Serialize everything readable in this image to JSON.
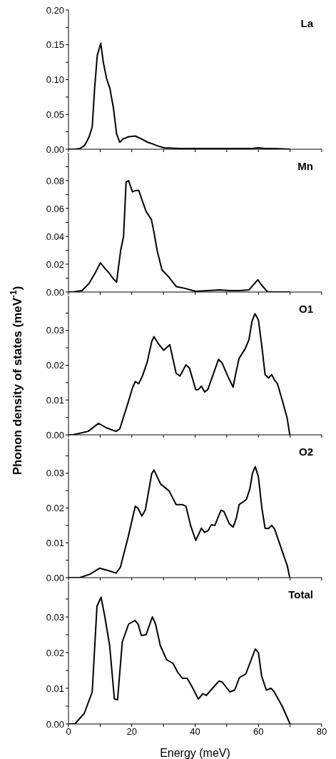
{
  "chart_data": [
    {
      "type": "line",
      "annotations": [
        "La"
      ],
      "tick_labels": "y",
      "marker": "none",
      "line_style": "solid",
      "xlim": [
        0,
        80
      ],
      "xticks": [
        {
          "value": 0,
          "label": null
        },
        {
          "value": 10,
          "label": null
        },
        {
          "value": 20,
          "label": null
        },
        {
          "value": 30,
          "label": null
        },
        {
          "value": 40,
          "label": null
        },
        {
          "value": 50,
          "label": null
        },
        {
          "value": 60,
          "label": null
        },
        {
          "value": 70,
          "label": null
        },
        {
          "value": 80,
          "label": null
        }
      ],
      "ylim": [
        0,
        0.2
      ],
      "yticks": [
        {
          "value": 0,
          "label": "0.00"
        },
        {
          "value": 0.025,
          "label": null
        },
        {
          "value": 0.05,
          "label": "0.05"
        },
        {
          "value": 0.075,
          "label": null
        },
        {
          "value": 0.1,
          "label": "0.10"
        },
        {
          "value": 0.125,
          "label": null
        },
        {
          "value": 0.15,
          "label": "0.15"
        },
        {
          "value": 0.175,
          "label": null
        },
        {
          "value": 0.2,
          "label": "0.20"
        }
      ],
      "series": [
        {
          "color": "#000000",
          "x": [
            0,
            2,
            3.6,
            5,
            5.9,
            6.6,
            7.5,
            8.3,
            9.1,
            10.2,
            11,
            12,
            13.1,
            14.2,
            15.2,
            16.2,
            17.3,
            19,
            21.1,
            23,
            25,
            26.4,
            28,
            30.2,
            35,
            50,
            58,
            60,
            62,
            65,
            70
          ],
          "values": [
            0,
            0,
            0.001,
            0.005,
            0.012,
            0.019,
            0.032,
            0.09,
            0.135,
            0.152,
            0.125,
            0.102,
            0.087,
            0.059,
            0.022,
            0.01,
            0.015,
            0.018,
            0.019,
            0.015,
            0.01,
            0.008,
            0.005,
            0.002,
            0.001,
            0.001,
            0.001,
            0.002,
            0.001,
            0.001,
            0
          ]
        }
      ]
    },
    {
      "type": "line",
      "annotations": [
        "Mn"
      ],
      "tick_labels": "y",
      "marker": "none",
      "line_style": "solid",
      "xlim": [
        0,
        80
      ],
      "xticks": [
        {
          "value": 0,
          "label": null
        },
        {
          "value": 10,
          "label": null
        },
        {
          "value": 20,
          "label": null
        },
        {
          "value": 30,
          "label": null
        },
        {
          "value": 40,
          "label": null
        },
        {
          "value": 50,
          "label": null
        },
        {
          "value": 60,
          "label": null
        },
        {
          "value": 70,
          "label": null
        },
        {
          "value": 80,
          "label": null
        }
      ],
      "ylim": [
        0,
        0.1
      ],
      "yticks": [
        {
          "value": 0,
          "label": "0.00"
        },
        {
          "value": 0.01,
          "label": null
        },
        {
          "value": 0.02,
          "label": "0.02"
        },
        {
          "value": 0.03,
          "label": null
        },
        {
          "value": 0.04,
          "label": "0.04"
        },
        {
          "value": 0.05,
          "label": null
        },
        {
          "value": 0.06,
          "label": "0.06"
        },
        {
          "value": 0.07,
          "label": null
        },
        {
          "value": 0.08,
          "label": "0.08"
        },
        {
          "value": 0.09,
          "label": null
        }
      ],
      "series": [
        {
          "color": "#000000",
          "x": [
            0,
            1.3,
            4.3,
            6.6,
            8.5,
            10.1,
            11.5,
            12.7,
            14,
            15.2,
            15.8,
            16.5,
            17.4,
            18.2,
            19,
            20.2,
            21.3,
            22.2,
            23.4,
            24.5,
            26.2,
            27,
            28,
            29.5,
            31.8,
            34,
            37,
            40.2,
            44,
            47.8,
            51,
            54,
            57,
            59.8,
            61,
            62.9,
            70
          ],
          "values": [
            0,
            0,
            0.001,
            0.0065,
            0.014,
            0.021,
            0.017,
            0.014,
            0.01,
            0.007,
            0.018,
            0.03,
            0.04,
            0.079,
            0.08,
            0.072,
            0.073,
            0.073,
            0.065,
            0.058,
            0.052,
            0.043,
            0.03,
            0.016,
            0.0105,
            0.004,
            0.0025,
            0.0005,
            0.001,
            0.0015,
            0.001,
            0.001,
            0.0015,
            0.0088,
            0.005,
            0,
            0
          ]
        }
      ]
    },
    {
      "type": "line",
      "annotations": [
        "O1"
      ],
      "ylabel": "Phonon density of states (meV$^{-1}$)",
      "tick_labels": "y",
      "marker": "none",
      "line_style": "solid",
      "xlim": [
        0,
        80
      ],
      "xticks": [
        {
          "value": 0,
          "label": null
        },
        {
          "value": 10,
          "label": null
        },
        {
          "value": 20,
          "label": null
        },
        {
          "value": 30,
          "label": null
        },
        {
          "value": 40,
          "label": null
        },
        {
          "value": 50,
          "label": null
        },
        {
          "value": 60,
          "label": null
        },
        {
          "value": 70,
          "label": null
        },
        {
          "value": 80,
          "label": null
        }
      ],
      "ylim": [
        0,
        0.04
      ],
      "yticks": [
        {
          "value": 0,
          "label": "0.00"
        },
        {
          "value": 0.005,
          "label": null
        },
        {
          "value": 0.01,
          "label": "0.01"
        },
        {
          "value": 0.015,
          "label": null
        },
        {
          "value": 0.02,
          "label": "0.02"
        },
        {
          "value": 0.025,
          "label": null
        },
        {
          "value": 0.03,
          "label": "0.03"
        },
        {
          "value": 0.035,
          "label": null
        }
      ],
      "series": [
        {
          "color": "#000000",
          "x": [
            0,
            1.3,
            6.2,
            9.5,
            12,
            15,
            16.2,
            18.4,
            20.3,
            21.1,
            22.2,
            23.4,
            24.9,
            26.3,
            27,
            28.3,
            30.1,
            32,
            34,
            35.2,
            37.1,
            38.2,
            40.2,
            41,
            42,
            43,
            44,
            47.4,
            48.5,
            50.4,
            52,
            52.7,
            53.9,
            55.8,
            57,
            58,
            58.9,
            60,
            61.1,
            62.1,
            63.2,
            64.2,
            65.1,
            66,
            67.6,
            69.1,
            69.9
          ],
          "values": [
            0,
            0,
            0.001,
            0.0033,
            0.002,
            0.001,
            0.0017,
            0.008,
            0.0137,
            0.0153,
            0.0147,
            0.017,
            0.021,
            0.0268,
            0.0282,
            0.0263,
            0.0243,
            0.0259,
            0.0177,
            0.0169,
            0.0201,
            0.0192,
            0.013,
            0.013,
            0.014,
            0.0123,
            0.013,
            0.0217,
            0.0207,
            0.0167,
            0.0137,
            0.017,
            0.022,
            0.0247,
            0.0273,
            0.0327,
            0.0348,
            0.033,
            0.0253,
            0.0173,
            0.0163,
            0.0173,
            0.0157,
            0.0147,
            0.0097,
            0.0047,
            0
          ]
        }
      ]
    },
    {
      "type": "line",
      "annotations": [
        "O2"
      ],
      "tick_labels": "y",
      "marker": "none",
      "line_style": "solid",
      "xlim": [
        0,
        80
      ],
      "xticks": [
        {
          "value": 0,
          "label": null
        },
        {
          "value": 10,
          "label": null
        },
        {
          "value": 20,
          "label": null
        },
        {
          "value": 30,
          "label": null
        },
        {
          "value": 40,
          "label": null
        },
        {
          "value": 50,
          "label": null
        },
        {
          "value": 60,
          "label": null
        },
        {
          "value": 70,
          "label": null
        },
        {
          "value": 80,
          "label": null
        }
      ],
      "ylim": [
        0,
        0.04
      ],
      "yticks": [
        {
          "value": 0,
          "label": "0.00"
        },
        {
          "value": 0.005,
          "label": null
        },
        {
          "value": 0.01,
          "label": "0.01"
        },
        {
          "value": 0.015,
          "label": null
        },
        {
          "value": 0.02,
          "label": "0.02"
        },
        {
          "value": 0.025,
          "label": null
        },
        {
          "value": 0.03,
          "label": "0.03"
        },
        {
          "value": 0.035,
          "label": null
        }
      ],
      "series": [
        {
          "color": "#000000",
          "x": [
            0,
            3.6,
            6.8,
            9.8,
            12.7,
            15,
            16.4,
            18.8,
            21.1,
            21.9,
            23.2,
            24.3,
            26.3,
            27,
            29.1,
            31.8,
            34,
            36,
            37.1,
            38.6,
            40.2,
            42,
            43,
            44.1,
            45.1,
            46.2,
            48.2,
            49.1,
            50.8,
            52,
            53,
            53.9,
            55.4,
            56.2,
            57.3,
            58.1,
            59,
            60,
            61.1,
            62.1,
            63.2,
            64.2,
            65.1,
            66.8,
            68.3,
            69.1,
            69.9
          ],
          "values": [
            0,
            0,
            0.001,
            0.0027,
            0.002,
            0.0013,
            0.003,
            0.0115,
            0.0205,
            0.02,
            0.0177,
            0.0195,
            0.0299,
            0.0309,
            0.0269,
            0.0249,
            0.021,
            0.021,
            0.0205,
            0.0149,
            0.0107,
            0.0142,
            0.013,
            0.0135,
            0.0152,
            0.015,
            0.0194,
            0.019,
            0.0155,
            0.0145,
            0.017,
            0.021,
            0.0219,
            0.0225,
            0.0255,
            0.0299,
            0.0319,
            0.0289,
            0.0199,
            0.0142,
            0.0141,
            0.015,
            0.014,
            0.0095,
            0.0055,
            0.0035,
            0
          ]
        }
      ]
    },
    {
      "type": "line",
      "annotations": [
        "Total"
      ],
      "xlabel": "Energy (meV)",
      "marker": "none",
      "line_style": "solid",
      "xlim": [
        0,
        80
      ],
      "xticks": [
        0,
        {
          "value": 10,
          "label": null
        },
        20,
        {
          "value": 30,
          "label": null
        },
        40,
        {
          "value": 50,
          "label": null
        },
        60,
        {
          "value": 70,
          "label": null
        },
        80
      ],
      "ylim": [
        0,
        0.04
      ],
      "yticks": [
        {
          "value": 0,
          "label": "0.00"
        },
        {
          "value": 0.005,
          "label": null
        },
        {
          "value": 0.01,
          "label": "0.01"
        },
        {
          "value": 0.015,
          "label": null
        },
        {
          "value": 0.02,
          "label": "0.02"
        },
        {
          "value": 0.025,
          "label": null
        },
        {
          "value": 0.03,
          "label": "0.03"
        },
        {
          "value": 0.035,
          "label": null
        }
      ],
      "series": [
        {
          "color": "#000000",
          "x": [
            0,
            2,
            5,
            7.5,
            9,
            10.3,
            11.5,
            13,
            14.5,
            15.5,
            17,
            19,
            21,
            22,
            23,
            24.5,
            26.5,
            27.5,
            29,
            31,
            33,
            34.5,
            36,
            37.5,
            39,
            41,
            42.5,
            43.5,
            45,
            47.5,
            48.5,
            51,
            52.5,
            54,
            56,
            57.5,
            59,
            60,
            61,
            62.5,
            64,
            65,
            67.5,
            69,
            70
          ],
          "values": [
            0,
            0,
            0.003,
            0.009,
            0.033,
            0.0355,
            0.03,
            0.022,
            0.007,
            0.0068,
            0.023,
            0.028,
            0.029,
            0.028,
            0.0248,
            0.025,
            0.03,
            0.028,
            0.022,
            0.018,
            0.017,
            0.0145,
            0.0128,
            0.0128,
            0.0105,
            0.007,
            0.0085,
            0.008,
            0.0095,
            0.012,
            0.0118,
            0.009,
            0.0095,
            0.013,
            0.014,
            0.0175,
            0.021,
            0.02,
            0.0135,
            0.0095,
            0.01,
            0.009,
            0.005,
            0.002,
            0
          ]
        }
      ]
    }
  ]
}
